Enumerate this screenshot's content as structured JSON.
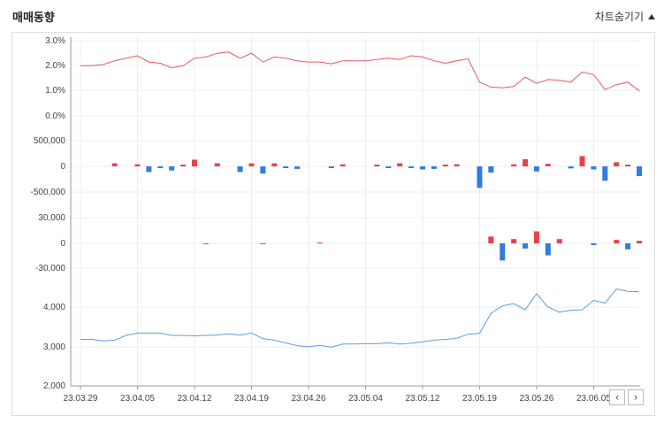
{
  "header": {
    "title": "매매동향",
    "toggle_label": "차트숨기기"
  },
  "nav": {
    "prev": "‹",
    "next": "›"
  },
  "colors": {
    "price_line": "#e8585a",
    "net_pos": "#e8414a",
    "net_neg": "#2f7de0",
    "holding_line": "#5aa0e0",
    "grid": "#ececec",
    "axis": "#999999"
  },
  "chart_data": [
    {
      "type": "line",
      "panel": "rate",
      "y_ticks": [
        "3.0%",
        "2.0%",
        "1.0%",
        "0.0%"
      ],
      "ylim": [
        0,
        3
      ],
      "values": [
        2.0,
        2.0,
        2.05,
        2.2,
        2.3,
        2.4,
        2.15,
        2.1,
        1.92,
        2.0,
        2.3,
        2.35,
        2.5,
        2.55,
        2.3,
        2.5,
        2.15,
        2.35,
        2.3,
        2.2,
        2.15,
        2.15,
        2.08,
        2.2,
        2.2,
        2.2,
        2.25,
        2.3,
        2.25,
        2.4,
        2.35,
        2.2,
        2.1,
        2.2,
        2.28,
        1.35,
        1.15,
        1.12,
        1.18,
        1.55,
        1.3,
        1.45,
        1.42,
        1.35,
        1.75,
        1.65,
        1.05,
        1.25,
        1.35,
        1.0
      ]
    },
    {
      "type": "bar",
      "panel": "net_buy_1",
      "y_ticks": [
        "500,000",
        "0",
        "-500,000"
      ],
      "ylim": [
        -1000000,
        1000000
      ],
      "values": [
        0,
        0,
        0,
        60000,
        0,
        40000,
        -110000,
        -15000,
        -80000,
        30000,
        130000,
        0,
        60000,
        0,
        -110000,
        60000,
        -140000,
        60000,
        -15000,
        -50000,
        0,
        0,
        -30000,
        40000,
        0,
        0,
        20000,
        -15000,
        60000,
        -15000,
        -60000,
        -50000,
        30000,
        40000,
        0,
        -420000,
        -120000,
        0,
        40000,
        140000,
        -100000,
        50000,
        0,
        -40000,
        200000,
        -60000,
        -280000,
        80000,
        30000,
        -190000
      ]
    },
    {
      "type": "bar",
      "panel": "net_buy_2",
      "y_ticks": [
        "30,000",
        "0",
        "-30,000"
      ],
      "ylim": [
        -60000,
        60000
      ],
      "values": [
        0,
        0,
        0,
        0,
        0,
        0,
        0,
        0,
        0,
        0,
        0,
        -200,
        0,
        0,
        0,
        0,
        -200,
        0,
        0,
        0,
        0,
        500,
        0,
        0,
        0,
        0,
        0,
        0,
        0,
        0,
        0,
        0,
        0,
        0,
        0,
        0,
        8000,
        -20000,
        5000,
        -6000,
        14000,
        -14000,
        5000,
        0,
        0,
        -2000,
        0,
        4000,
        -7000,
        3000
      ]
    },
    {
      "type": "line",
      "panel": "holding",
      "y_ticks": [
        "4,000",
        "3,000",
        "2,000"
      ],
      "ylim": [
        2000,
        4700
      ],
      "values": [
        3180,
        3180,
        3140,
        3160,
        3280,
        3340,
        3340,
        3340,
        3280,
        3280,
        3270,
        3280,
        3290,
        3320,
        3290,
        3340,
        3200,
        3160,
        3090,
        3020,
        2990,
        3030,
        2980,
        3060,
        3060,
        3070,
        3070,
        3090,
        3060,
        3080,
        3120,
        3160,
        3180,
        3210,
        3310,
        3330,
        3840,
        4030,
        4090,
        3930,
        4340,
        4000,
        3870,
        3920,
        3930,
        4170,
        4100,
        4460,
        4400,
        4390
      ]
    }
  ],
  "x_labels": [
    "23.03.29",
    "23.04.05",
    "23.04.12",
    "23.04.19",
    "23.04.26",
    "23.05.04",
    "23.05.12",
    "23.05.19",
    "23.05.26",
    "23.06.05"
  ]
}
